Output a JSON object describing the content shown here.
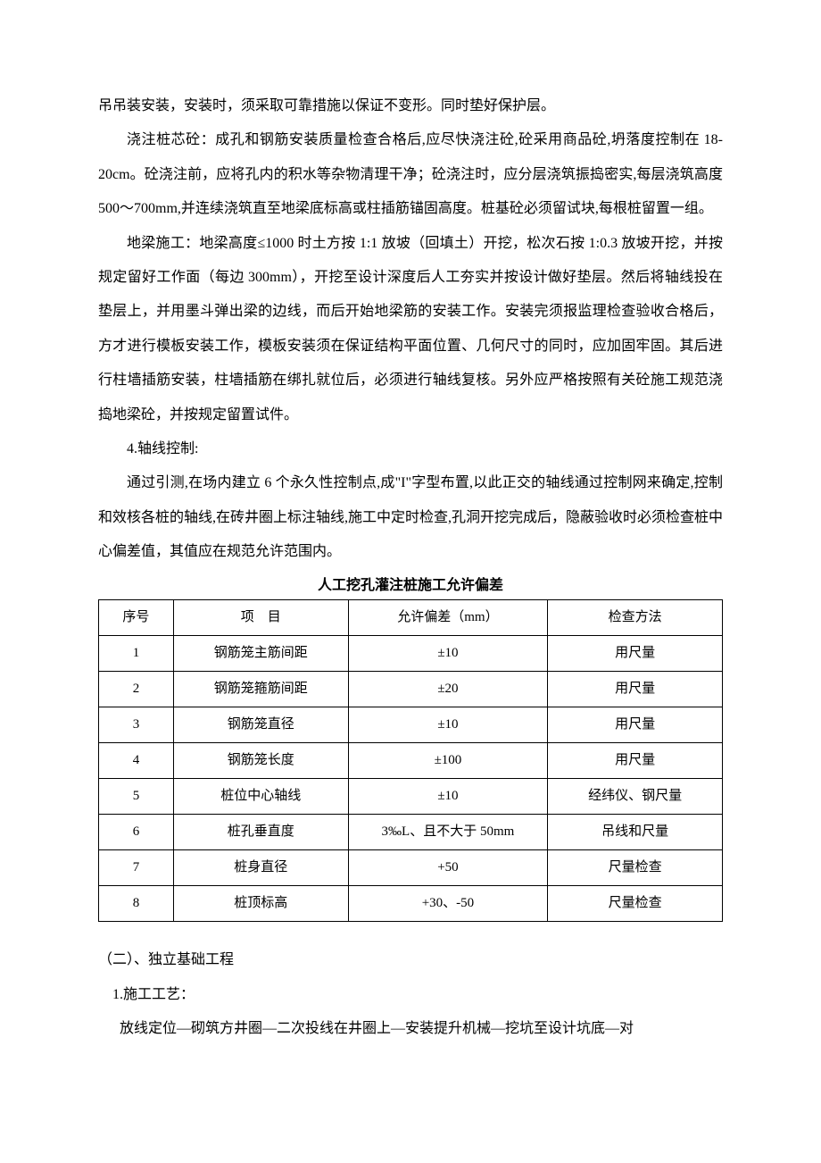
{
  "paragraphs": {
    "p1": "吊吊装安装，安装时，须采取可靠措施以保证不变形。同时垫好保护层。",
    "p2": "浇注桩芯砼：成孔和钢筋安装质量检查合格后,应尽快浇注砼,砼采用商品砼,坍落度控制在 18-20cm。砼浇注前，应将孔内的积水等杂物清理干净；砼浇注时，应分层浇筑振捣密实,每层浇筑高度 500～700mm,并连续浇筑直至地梁底标高或柱插筋锚固高度。桩基砼必须留试块,每根桩留置一组。",
    "p3": "地梁施工：地梁高度≤1000 时土方按 1:1 放坡（回填土）开挖，松次石按 1:0.3 放坡开挖，并按规定留好工作面（每边 300mm），开挖至设计深度后人工夯实并按设计做好垫层。然后将轴线投在垫层上，并用墨斗弹出梁的边线，而后开始地梁筋的安装工作。安装完须报监理检查验收合格后，方才进行模板安装工作，模板安装须在保证结构平面位置、几何尺寸的同时，应加固牢固。其后进行柱墙插筋安装，柱墙插筋在绑扎就位后，必须进行轴线复核。另外应严格按照有关砼施工规范浇捣地梁砼，并按规定留置试件。",
    "p4_title": "4.轴线控制:",
    "p4": "通过引测,在场内建立 6 个永久性控制点,成\"I\"字型布置,以此正交的轴线通过控制网来确定,控制和效核各桩的轴线,在砖井圈上标注轴线,施工中定时检查,孔洞开挖完成后，隐蔽验收时必须检查桩中心偏差值，其值应在规范允许范围内。"
  },
  "table": {
    "title": "人工挖孔灌注桩施工允许偏差",
    "headers": {
      "seq": "序号",
      "item": "项　目",
      "tolerance": "允许偏差（mm）",
      "method": "检查方法"
    },
    "rows": [
      {
        "seq": "1",
        "item": "钢筋笼主筋间距",
        "tolerance": "±10",
        "method": "用尺量"
      },
      {
        "seq": "2",
        "item": "钢筋笼箍筋间距",
        "tolerance": "±20",
        "method": "用尺量"
      },
      {
        "seq": "3",
        "item": "钢筋笼直径",
        "tolerance": "±10",
        "method": "用尺量"
      },
      {
        "seq": "4",
        "item": "钢筋笼长度",
        "tolerance": "±100",
        "method": "用尺量"
      },
      {
        "seq": "5",
        "item": "桩位中心轴线",
        "tolerance": "±10",
        "method": "经纬仪、钢尺量"
      },
      {
        "seq": "6",
        "item": "桩孔垂直度",
        "tolerance": "3‰L、且不大于 50mm",
        "method": "吊线和尺量"
      },
      {
        "seq": "7",
        "item": "桩身直径",
        "tolerance": "+50",
        "method": "尺量检查"
      },
      {
        "seq": "8",
        "item": "桩顶标高",
        "tolerance": "+30、-50",
        "method": "尺量检查"
      }
    ]
  },
  "section2": {
    "heading": "（二）、独立基础工程",
    "sub1": "1.施工工艺：",
    "sub1_para": "放线定位—砌筑方井圈—二次投线在井圈上—安装提升机械—挖坑至设计坑底—对"
  },
  "styles": {
    "font_size_body": 16,
    "line_height": 2.4,
    "border_color": "#000000",
    "text_color": "#000000",
    "background_color": "#ffffff"
  }
}
